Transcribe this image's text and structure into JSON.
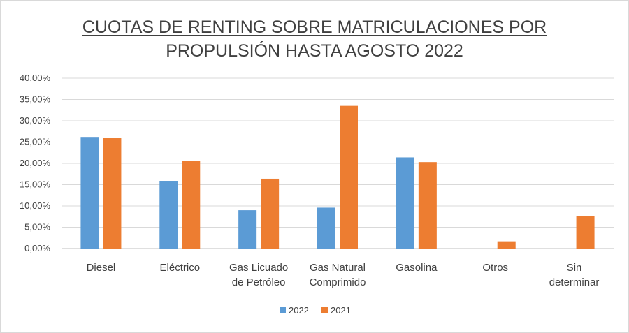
{
  "chart_data": {
    "type": "bar",
    "title_lines": [
      "CUOTAS DE RENTING SOBRE MATRICULACIONES POR",
      "PROPULSIÓN HASTA AGOSTO 2022"
    ],
    "categories": [
      [
        "Diesel"
      ],
      [
        "Eléctrico"
      ],
      [
        "Gas Licuado",
        "de Petróleo"
      ],
      [
        "Gas Natural",
        "Comprimido"
      ],
      [
        "Gasolina"
      ],
      [
        "Otros"
      ],
      [
        "Sin",
        "determinar"
      ]
    ],
    "series": [
      {
        "name": "2022",
        "color": "#5b9bd5",
        "values": [
          26.2,
          15.9,
          9.0,
          9.6,
          21.4,
          0,
          0
        ]
      },
      {
        "name": "2021",
        "color": "#ed7d31",
        "values": [
          25.9,
          20.6,
          16.4,
          33.5,
          20.3,
          1.7,
          7.7
        ]
      }
    ],
    "yticks": [
      "0,00%",
      "5,00%",
      "10,00%",
      "15,00%",
      "20,00%",
      "25,00%",
      "30,00%",
      "35,00%",
      "40,00%"
    ],
    "ylim": [
      0,
      40
    ],
    "grid": true,
    "legend_position": "bottom"
  }
}
